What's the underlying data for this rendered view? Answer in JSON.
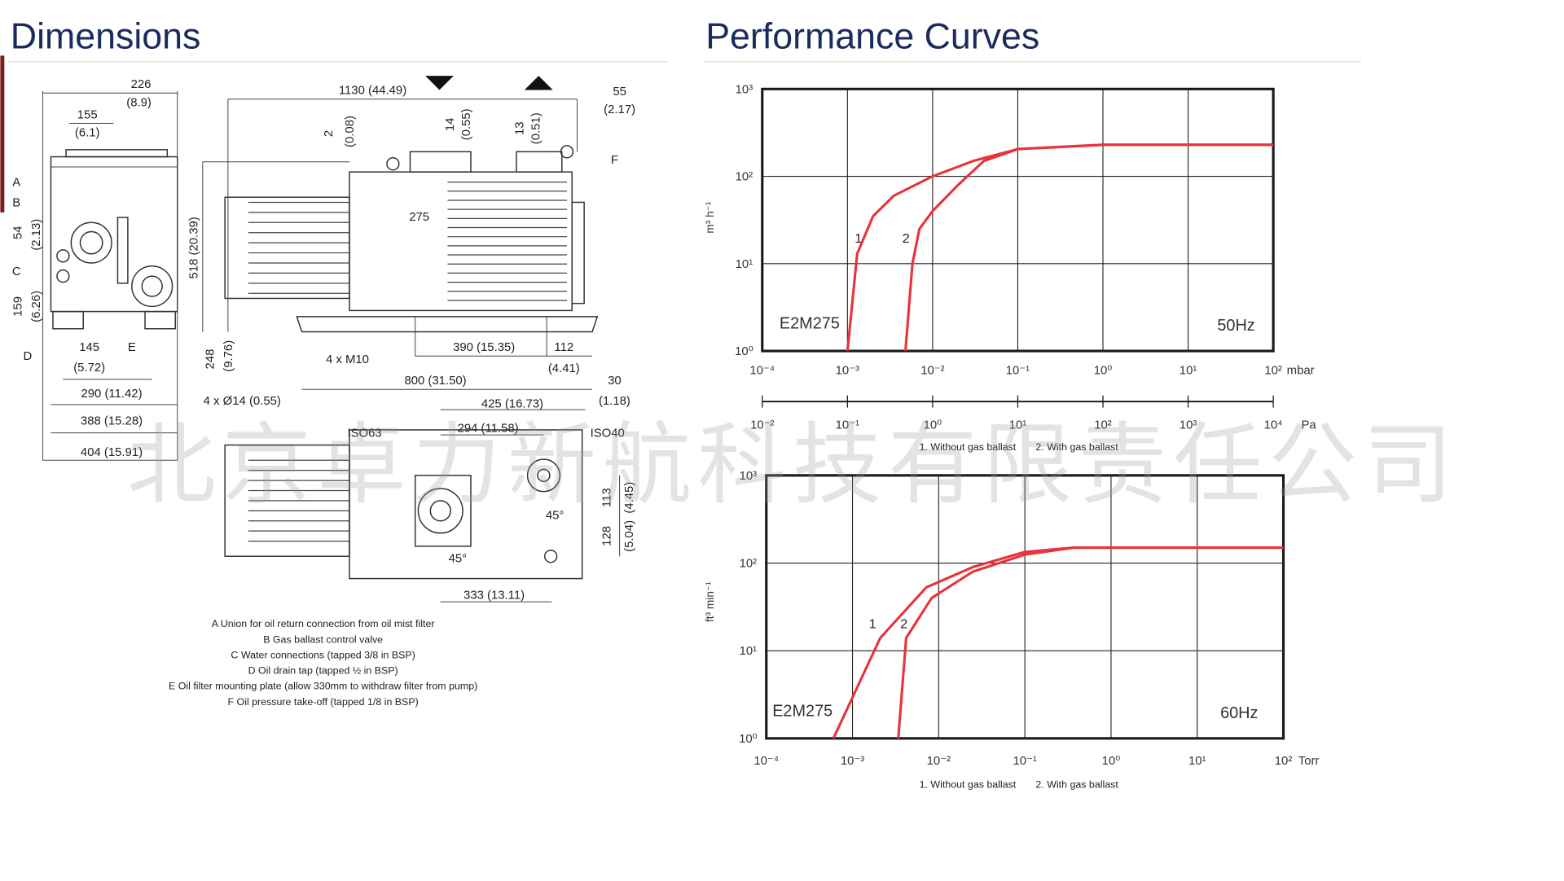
{
  "dimensions": {
    "title": "Dimensions",
    "labels": [
      "226",
      "(8.9)",
      "155",
      "(6.1)",
      "1130 (44.49)",
      "55",
      "(2.17)",
      "2",
      "(0.08)",
      "14",
      "(0.55)",
      "13",
      "(0.51)",
      "F",
      "A",
      "B",
      "54",
      "(2.13)",
      "C",
      "159",
      "(6.26)",
      "518 (20.39)",
      "275",
      "D",
      "145",
      "(5.72)",
      "E",
      "4 x M10",
      "390 (15.35)",
      "112",
      "(4.41)",
      "248",
      "(9.76)",
      "800 (31.50)",
      "30",
      "(1.18)",
      "290 (11.42)",
      "4 x Ø14 (0.55)",
      "425 (16.73)",
      "388 (15.28)",
      "294 (11.58)",
      "ISO63",
      "ISO40",
      "404 (15.91)",
      "113",
      "(4.45)",
      "45°",
      "128",
      "(5.04)",
      "45°",
      "333 (13.11)"
    ],
    "notes": [
      "A Union for oil return connection from oil mist filter",
      "B Gas ballast control valve",
      "C Water connections (tapped 3/8 in BSP)",
      "D Oil drain tap (tapped ½ in BSP)",
      "E Oil filter mounting plate (allow 330mm to withdraw filter from pump)",
      "F Oil pressure take-off (tapped 1/8 in BSP)"
    ]
  },
  "performance": {
    "title": "Performance Curves"
  },
  "watermark": "北京卓力新航科技有限责任公司",
  "chart_data": [
    {
      "type": "line",
      "xlog": true,
      "ylog": true,
      "grid": true,
      "xlim": [
        0.0001,
        100
      ],
      "xticks": [
        {
          "value": 0.0001,
          "label": "10⁻⁴"
        },
        {
          "value": 0.001,
          "label": "10⁻³"
        },
        {
          "value": 0.01,
          "label": "10⁻²"
        },
        {
          "value": 0.1,
          "label": "10⁻¹"
        },
        {
          "value": 1,
          "label": "10⁰"
        },
        {
          "value": 10,
          "label": "10¹"
        },
        {
          "value": 100,
          "label": "10²"
        }
      ],
      "x_unit": "mbar",
      "x2lim": [
        0.01,
        10000
      ],
      "x2ticks": [
        {
          "value": 0.01,
          "label": "10⁻²"
        },
        {
          "value": 0.1,
          "label": "10⁻¹"
        },
        {
          "value": 1,
          "label": "10⁰"
        },
        {
          "value": 10,
          "label": "10¹"
        },
        {
          "value": 100,
          "label": "10²"
        },
        {
          "value": 1000,
          "label": "10³"
        },
        {
          "value": 10000,
          "label": "10⁴"
        }
      ],
      "x2_unit": "Pa",
      "ylabel": "m³ h⁻¹",
      "ylim": [
        1,
        1000
      ],
      "yticks": [
        {
          "value": 1,
          "label": "10⁰"
        },
        {
          "value": 10,
          "label": "10¹"
        },
        {
          "value": 100,
          "label": "10²"
        },
        {
          "value": 1000,
          "label": "10³"
        }
      ],
      "annotations": [
        "E2M275",
        "50Hz"
      ],
      "notes": [
        "1. Without gas ballast",
        "2. With gas ballast"
      ],
      "series": [
        {
          "name": "1",
          "color": "#e8323c",
          "x": [
            0.001,
            0.0013,
            0.002,
            0.0035,
            0.01,
            0.03,
            0.1,
            1,
            100
          ],
          "values": [
            1,
            13,
            35,
            60,
            100,
            150,
            205,
            230,
            230
          ]
        },
        {
          "name": "2",
          "color": "#e8323c",
          "x": [
            0.0048,
            0.0058,
            0.007,
            0.01,
            0.02,
            0.04,
            0.1,
            1,
            100
          ],
          "values": [
            1,
            10,
            25,
            40,
            80,
            150,
            205,
            230,
            230
          ]
        }
      ]
    },
    {
      "type": "line",
      "xlog": true,
      "ylog": true,
      "grid": true,
      "xlim": [
        0.0001,
        100
      ],
      "xticks": [
        {
          "value": 0.0001,
          "label": "10⁻⁴"
        },
        {
          "value": 0.001,
          "label": "10⁻³"
        },
        {
          "value": 0.01,
          "label": "10⁻²"
        },
        {
          "value": 0.1,
          "label": "10⁻¹"
        },
        {
          "value": 1,
          "label": "10⁰"
        },
        {
          "value": 10,
          "label": "10¹"
        },
        {
          "value": 100,
          "label": "10²"
        }
      ],
      "x_unit": "Torr",
      "ylabel": "ft³ min⁻¹",
      "ylim": [
        1,
        1000
      ],
      "yticks": [
        {
          "value": 1,
          "label": "10⁰"
        },
        {
          "value": 10,
          "label": "10¹"
        },
        {
          "value": 100,
          "label": "10²"
        },
        {
          "value": 1000,
          "label": "10³"
        }
      ],
      "annotations": [
        "E2M275",
        "60Hz"
      ],
      "notes": [
        "1. Without gas ballast",
        "2. With gas ballast"
      ],
      "series": [
        {
          "name": "1",
          "color": "#e8323c",
          "x": [
            0.0006,
            0.0021,
            0.0072,
            0.025,
            0.1,
            0.37,
            100
          ],
          "values": [
            1,
            14,
            53,
            90,
            134,
            150,
            150
          ]
        },
        {
          "name": "2",
          "color": "#e8323c",
          "x": [
            0.0034,
            0.0042,
            0.0083,
            0.025,
            0.1,
            0.37,
            100
          ],
          "values": [
            1,
            14,
            40,
            80,
            125,
            150,
            150
          ]
        }
      ]
    }
  ]
}
